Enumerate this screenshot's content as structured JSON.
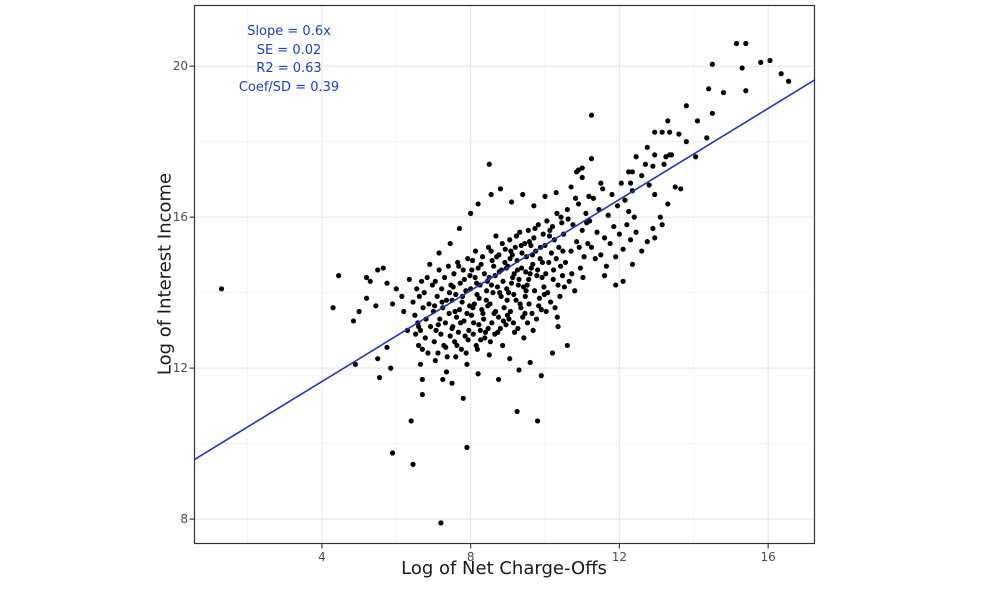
{
  "colors": {
    "annotation_text": "#1c40c8",
    "regression_line": "#2236b8",
    "point_fill": "#000000",
    "grid_major": "#e7e7e7",
    "grid_minor": "#f2f2f2",
    "panel_border": "#333333",
    "tick_mark": "#333333",
    "tick_label": "#4d4d4d",
    "axis_title": "#1a1a1a",
    "background": "#ffffff"
  },
  "chart_data": {
    "type": "scatter",
    "title": "",
    "xlabel": "Log of Net Charge-Offs",
    "ylabel": "Log of Interest Income",
    "annotation": {
      "lines": [
        "Slope = 0.6x",
        "SE = 0.02",
        "R2 = 0.63",
        "Coef/SD = 0.39"
      ]
    },
    "xlim": [
      0.56,
      17.26
    ],
    "ylim": [
      7.34,
      21.62
    ],
    "x_ticks": [
      4,
      8,
      12,
      16
    ],
    "y_ticks": [
      8,
      12,
      16,
      20
    ],
    "x_minor_gridlines": [
      2,
      6,
      10,
      14
    ],
    "y_minor_gridlines": [
      10,
      14,
      18
    ],
    "grid": "on",
    "legend": "none",
    "regression_line": {
      "x1": 0.56,
      "y1": 9.57,
      "x2": 17.26,
      "y2": 19.64,
      "slope": 0.6,
      "intercept": 9.23
    },
    "point_radius": 2.6,
    "points": [
      [
        1.3,
        14.1
      ],
      [
        7.2,
        7.9
      ],
      [
        5.9,
        9.75
      ],
      [
        6.45,
        9.45
      ],
      [
        6.4,
        10.6
      ],
      [
        7.9,
        9.9
      ],
      [
        6.7,
        11.3
      ],
      [
        7.5,
        11.6
      ],
      [
        7.8,
        11.2
      ],
      [
        9.25,
        10.85
      ],
      [
        9.8,
        10.6
      ],
      [
        7.25,
        11.7
      ],
      [
        4.45,
        14.45
      ],
      [
        5.2,
        14.4
      ],
      [
        5.5,
        14.6
      ],
      [
        5.65,
        14.65
      ],
      [
        5.3,
        14.3
      ],
      [
        5.75,
        14.25
      ],
      [
        4.3,
        13.6
      ],
      [
        5.0,
        13.5
      ],
      [
        4.85,
        13.25
      ],
      [
        5.45,
        13.65
      ],
      [
        5.9,
        13.7
      ],
      [
        5.2,
        13.85
      ],
      [
        6.2,
        13.5
      ],
      [
        6.3,
        13.0
      ],
      [
        6.6,
        13.1
      ],
      [
        5.75,
        12.55
      ],
      [
        5.5,
        12.25
      ],
      [
        4.9,
        12.1
      ],
      [
        5.55,
        11.75
      ],
      [
        5.85,
        12.0
      ],
      [
        6.65,
        12.1
      ],
      [
        6.7,
        11.7
      ],
      [
        6.0,
        14.1
      ],
      [
        6.15,
        13.9
      ],
      [
        6.35,
        14.35
      ],
      [
        6.45,
        13.75
      ],
      [
        15.15,
        20.6
      ],
      [
        15.4,
        20.6
      ],
      [
        14.5,
        20.05
      ],
      [
        15.3,
        19.95
      ],
      [
        15.8,
        20.1
      ],
      [
        16.05,
        20.15
      ],
      [
        16.35,
        19.8
      ],
      [
        16.55,
        19.6
      ],
      [
        14.4,
        19.4
      ],
      [
        14.8,
        19.3
      ],
      [
        15.4,
        19.35
      ],
      [
        13.8,
        18.95
      ],
      [
        13.3,
        18.55
      ],
      [
        14.1,
        18.55
      ],
      [
        14.5,
        18.75
      ],
      [
        12.95,
        18.25
      ],
      [
        13.15,
        18.25
      ],
      [
        13.35,
        18.25
      ],
      [
        13.8,
        18.0
      ],
      [
        14.35,
        18.1
      ],
      [
        12.75,
        17.85
      ],
      [
        12.45,
        17.6
      ],
      [
        13.25,
        17.6
      ],
      [
        13.4,
        17.65
      ],
      [
        12.7,
        17.4
      ],
      [
        12.9,
        17.35
      ],
      [
        12.35,
        17.2
      ],
      [
        12.6,
        17.1
      ],
      [
        12.8,
        16.85
      ],
      [
        12.3,
        16.9
      ],
      [
        13.5,
        16.8
      ],
      [
        13.65,
        16.75
      ],
      [
        12.95,
        16.6
      ],
      [
        14.05,
        17.6
      ],
      [
        11.25,
        18.7
      ],
      [
        11.25,
        17.55
      ],
      [
        11.0,
        17.3
      ],
      [
        10.85,
        17.2
      ],
      [
        12.25,
        17.2
      ],
      [
        12.95,
        17.65
      ],
      [
        13.2,
        17.4
      ],
      [
        13.35,
        17.65
      ],
      [
        10.9,
        17.25
      ],
      [
        11.0,
        17.05
      ],
      [
        11.5,
        16.9
      ],
      [
        8.5,
        17.4
      ],
      [
        13.6,
        18.2
      ],
      [
        7.05,
        12.2
      ],
      [
        7.35,
        11.9
      ],
      [
        7.6,
        12.3
      ],
      [
        7.9,
        12.1
      ],
      [
        8.2,
        11.85
      ],
      [
        8.5,
        12.35
      ],
      [
        8.75,
        11.7
      ],
      [
        9.05,
        12.25
      ],
      [
        9.3,
        11.95
      ],
      [
        9.6,
        12.15
      ],
      [
        9.9,
        11.8
      ],
      [
        10.2,
        12.4
      ],
      [
        10.6,
        12.6
      ],
      [
        10.35,
        13.1
      ],
      [
        12.1,
        14.3
      ],
      [
        12.35,
        14.75
      ],
      [
        12.6,
        15.1
      ],
      [
        11.9,
        14.2
      ],
      [
        11.6,
        14.45
      ],
      [
        12.75,
        15.35
      ],
      [
        12.9,
        15.7
      ],
      [
        13.1,
        16.0
      ],
      [
        13.3,
        16.35
      ],
      [
        12.95,
        15.45
      ],
      [
        13.15,
        15.8
      ],
      [
        8.2,
        16.35
      ],
      [
        8.55,
        16.6
      ],
      [
        8.8,
        16.75
      ],
      [
        9.1,
        16.4
      ],
      [
        9.4,
        16.6
      ],
      [
        9.7,
        16.3
      ],
      [
        10.0,
        16.55
      ],
      [
        8.0,
        16.1
      ],
      [
        7.7,
        15.7
      ],
      [
        7.45,
        15.3
      ],
      [
        7.15,
        15.05
      ],
      [
        6.9,
        14.75
      ],
      [
        10.3,
        16.65
      ],
      [
        10.7,
        16.8
      ],
      [
        6.5,
        13.4
      ],
      [
        6.52,
        12.9
      ],
      [
        6.55,
        14.1
      ],
      [
        6.58,
        13.2
      ],
      [
        6.6,
        12.6
      ],
      [
        6.62,
        13.9
      ],
      [
        6.65,
        13.0
      ],
      [
        6.68,
        14.3
      ],
      [
        6.7,
        12.5
      ],
      [
        6.72,
        13.6
      ],
      [
        6.75,
        14.0
      ],
      [
        6.78,
        12.8
      ],
      [
        6.8,
        13.3
      ],
      [
        6.83,
        14.4
      ],
      [
        6.85,
        12.4
      ],
      [
        6.88,
        13.7
      ],
      [
        6.92,
        13.1
      ],
      [
        6.97,
        14.2
      ],
      [
        7.0,
        13.5
      ],
      [
        7.02,
        12.7
      ],
      [
        7.05,
        14.3
      ],
      [
        7.07,
        13.0
      ],
      [
        7.1,
        13.9
      ],
      [
        7.12,
        12.4
      ],
      [
        7.15,
        14.6
      ],
      [
        7.17,
        13.3
      ],
      [
        7.2,
        12.9
      ],
      [
        7.22,
        14.1
      ],
      [
        7.25,
        13.6
      ],
      [
        7.28,
        12.6
      ],
      [
        7.3,
        14.4
      ],
      [
        7.32,
        13.2
      ],
      [
        7.35,
        13.8
      ],
      [
        7.37,
        12.3
      ],
      [
        7.4,
        14.7
      ],
      [
        7.42,
        13.45
      ],
      [
        7.45,
        12.85
      ],
      [
        7.47,
        14.2
      ],
      [
        7.5,
        13.05
      ],
      [
        7.03,
        13.65
      ],
      [
        7.13,
        13.15
      ],
      [
        7.23,
        13.75
      ],
      [
        7.33,
        12.55
      ],
      [
        7.43,
        14.0
      ],
      [
        7.5,
        13.8
      ],
      [
        7.52,
        13.1
      ],
      [
        7.55,
        14.5
      ],
      [
        7.57,
        12.7
      ],
      [
        7.6,
        13.95
      ],
      [
        7.62,
        13.35
      ],
      [
        7.65,
        14.8
      ],
      [
        7.67,
        12.95
      ],
      [
        7.7,
        13.55
      ],
      [
        7.72,
        14.25
      ],
      [
        7.75,
        12.5
      ],
      [
        7.77,
        13.75
      ],
      [
        7.8,
        14.6
      ],
      [
        7.82,
        13.25
      ],
      [
        7.85,
        12.85
      ],
      [
        7.87,
        14.05
      ],
      [
        7.9,
        13.45
      ],
      [
        7.92,
        14.9
      ],
      [
        7.95,
        13.0
      ],
      [
        7.97,
        13.65
      ],
      [
        7.53,
        14.15
      ],
      [
        7.63,
        12.6
      ],
      [
        7.73,
        13.2
      ],
      [
        7.83,
        14.35
      ],
      [
        7.93,
        12.75
      ],
      [
        7.58,
        13.5
      ],
      [
        7.68,
        14.7
      ],
      [
        7.78,
        13.9
      ],
      [
        7.88,
        12.4
      ],
      [
        7.98,
        14.45
      ],
      [
        8.0,
        14.1
      ],
      [
        8.02,
        13.4
      ],
      [
        8.05,
        14.85
      ],
      [
        8.07,
        12.9
      ],
      [
        8.1,
        13.7
      ],
      [
        8.12,
        14.4
      ],
      [
        8.15,
        12.6
      ],
      [
        8.17,
        13.95
      ],
      [
        8.2,
        14.65
      ],
      [
        8.22,
        13.15
      ],
      [
        8.25,
        14.2
      ],
      [
        8.27,
        12.75
      ],
      [
        8.3,
        13.55
      ],
      [
        8.32,
        14.95
      ],
      [
        8.35,
        13.3
      ],
      [
        8.37,
        14.5
      ],
      [
        8.4,
        12.95
      ],
      [
        8.42,
        13.8
      ],
      [
        8.45,
        14.3
      ],
      [
        8.47,
        13.05
      ],
      [
        8.03,
        14.6
      ],
      [
        8.08,
        13.2
      ],
      [
        8.13,
        15.1
      ],
      [
        8.18,
        12.5
      ],
      [
        8.23,
        13.85
      ],
      [
        8.28,
        14.75
      ],
      [
        8.33,
        13.45
      ],
      [
        8.38,
        12.8
      ],
      [
        8.43,
        14.05
      ],
      [
        8.48,
        15.2
      ],
      [
        8.06,
        13.6
      ],
      [
        8.16,
        14.25
      ],
      [
        8.26,
        13.0
      ],
      [
        8.46,
        13.65
      ],
      [
        8.5,
        14.4
      ],
      [
        8.52,
        13.7
      ],
      [
        8.55,
        15.1
      ],
      [
        8.57,
        13.2
      ],
      [
        8.6,
        14.0
      ],
      [
        8.62,
        14.7
      ],
      [
        8.65,
        12.9
      ],
      [
        8.67,
        13.5
      ],
      [
        8.7,
        14.95
      ],
      [
        8.72,
        14.15
      ],
      [
        8.75,
        13.35
      ],
      [
        8.77,
        14.55
      ],
      [
        8.8,
        13.05
      ],
      [
        8.82,
        13.9
      ],
      [
        8.85,
        15.3
      ],
      [
        8.87,
        14.3
      ],
      [
        8.9,
        13.6
      ],
      [
        8.92,
        14.8
      ],
      [
        8.95,
        13.15
      ],
      [
        8.97,
        14.1
      ],
      [
        8.53,
        12.7
      ],
      [
        8.58,
        14.85
      ],
      [
        8.63,
        13.45
      ],
      [
        8.68,
        15.5
      ],
      [
        8.73,
        12.95
      ],
      [
        8.78,
        14.0
      ],
      [
        8.83,
        14.6
      ],
      [
        8.88,
        13.25
      ],
      [
        8.93,
        15.15
      ],
      [
        8.98,
        13.8
      ],
      [
        8.56,
        14.2
      ],
      [
        8.66,
        14.45
      ],
      [
        8.76,
        15.0
      ],
      [
        8.86,
        12.6
      ],
      [
        8.96,
        14.65
      ],
      [
        8.99,
        13.4
      ],
      [
        9.0,
        14.7
      ],
      [
        9.02,
        14.0
      ],
      [
        9.05,
        15.4
      ],
      [
        9.07,
        13.5
      ],
      [
        9.1,
        14.25
      ],
      [
        9.12,
        15.0
      ],
      [
        9.15,
        13.2
      ],
      [
        9.17,
        14.5
      ],
      [
        9.2,
        15.2
      ],
      [
        9.22,
        13.8
      ],
      [
        9.25,
        14.85
      ],
      [
        9.27,
        13.05
      ],
      [
        9.3,
        14.35
      ],
      [
        9.32,
        15.6
      ],
      [
        9.35,
        13.6
      ],
      [
        9.37,
        14.65
      ],
      [
        9.4,
        13.35
      ],
      [
        9.42,
        14.15
      ],
      [
        9.45,
        15.3
      ],
      [
        9.47,
        13.9
      ],
      [
        9.03,
        13.3
      ],
      [
        9.08,
        15.1
      ],
      [
        9.13,
        14.4
      ],
      [
        9.18,
        12.95
      ],
      [
        9.23,
        15.5
      ],
      [
        9.28,
        14.2
      ],
      [
        9.33,
        13.7
      ],
      [
        9.38,
        15.05
      ],
      [
        9.43,
        12.8
      ],
      [
        9.48,
        14.55
      ],
      [
        9.06,
        14.9
      ],
      [
        9.16,
        13.95
      ],
      [
        9.26,
        14.6
      ],
      [
        9.36,
        15.25
      ],
      [
        9.46,
        13.45
      ],
      [
        9.49,
        14.05
      ],
      [
        9.5,
        14.95
      ],
      [
        9.52,
        14.2
      ],
      [
        9.55,
        15.65
      ],
      [
        9.57,
        13.7
      ],
      [
        9.6,
        14.5
      ],
      [
        9.62,
        15.25
      ],
      [
        9.65,
        13.45
      ],
      [
        9.67,
        14.75
      ],
      [
        9.7,
        15.45
      ],
      [
        9.72,
        14.05
      ],
      [
        9.75,
        15.1
      ],
      [
        9.77,
        13.3
      ],
      [
        9.8,
        14.6
      ],
      [
        9.82,
        15.8
      ],
      [
        9.85,
        13.85
      ],
      [
        9.87,
        14.9
      ],
      [
        9.9,
        13.55
      ],
      [
        9.92,
        14.4
      ],
      [
        9.95,
        15.55
      ],
      [
        9.97,
        14.15
      ],
      [
        9.53,
        13.2
      ],
      [
        9.58,
        15.35
      ],
      [
        9.63,
        14.65
      ],
      [
        9.68,
        13.0
      ],
      [
        9.73,
        15.7
      ],
      [
        9.78,
        14.45
      ],
      [
        9.83,
        13.65
      ],
      [
        9.88,
        15.2
      ],
      [
        9.93,
        14.8
      ],
      [
        9.98,
        13.95
      ],
      [
        9.56,
        14.35
      ],
      [
        9.66,
        15.0
      ],
      [
        10.0,
        15.25
      ],
      [
        10.02,
        14.5
      ],
      [
        10.05,
        15.9
      ],
      [
        10.07,
        14.0
      ],
      [
        10.1,
        14.8
      ],
      [
        10.12,
        15.5
      ],
      [
        10.15,
        13.75
      ],
      [
        10.17,
        15.05
      ],
      [
        10.2,
        15.75
      ],
      [
        10.22,
        14.35
      ],
      [
        10.25,
        15.4
      ],
      [
        10.27,
        13.6
      ],
      [
        10.3,
        14.9
      ],
      [
        10.32,
        16.1
      ],
      [
        10.35,
        14.2
      ],
      [
        10.37,
        15.2
      ],
      [
        10.4,
        13.9
      ],
      [
        10.42,
        14.7
      ],
      [
        10.45,
        15.85
      ],
      [
        10.47,
        14.45
      ],
      [
        10.03,
        13.5
      ],
      [
        10.13,
        15.65
      ],
      [
        10.23,
        14.6
      ],
      [
        10.33,
        13.35
      ],
      [
        10.43,
        16.0
      ],
      [
        10.48,
        15.1
      ],
      [
        10.5,
        15.55
      ],
      [
        10.55,
        14.8
      ],
      [
        10.6,
        16.2
      ],
      [
        10.65,
        14.3
      ],
      [
        10.7,
        15.1
      ],
      [
        10.75,
        15.8
      ],
      [
        10.8,
        14.05
      ],
      [
        10.85,
        15.35
      ],
      [
        10.9,
        16.35
      ],
      [
        10.95,
        14.65
      ],
      [
        11.0,
        15.65
      ],
      [
        11.05,
        14.95
      ],
      [
        11.1,
        16.1
      ],
      [
        11.15,
        15.3
      ],
      [
        10.52,
        14.15
      ],
      [
        10.62,
        15.95
      ],
      [
        10.72,
        14.5
      ],
      [
        10.82,
        16.5
      ],
      [
        10.92,
        15.2
      ],
      [
        11.02,
        14.4
      ],
      [
        11.12,
        15.85
      ],
      [
        11.18,
        16.55
      ],
      [
        11.2,
        15.9
      ],
      [
        11.25,
        15.2
      ],
      [
        11.3,
        16.5
      ],
      [
        11.35,
        14.9
      ],
      [
        11.4,
        15.6
      ],
      [
        11.45,
        16.2
      ],
      [
        11.5,
        15.0
      ],
      [
        11.55,
        16.75
      ],
      [
        11.6,
        15.45
      ],
      [
        11.65,
        14.7
      ],
      [
        11.7,
        16.05
      ],
      [
        11.75,
        15.3
      ],
      [
        11.8,
        16.6
      ],
      [
        11.85,
        15.75
      ],
      [
        11.9,
        14.95
      ],
      [
        11.95,
        16.3
      ],
      [
        12.0,
        15.55
      ],
      [
        12.05,
        16.9
      ],
      [
        12.1,
        15.15
      ],
      [
        12.15,
        16.45
      ],
      [
        12.2,
        15.8
      ],
      [
        12.25,
        16.15
      ],
      [
        12.3,
        15.4
      ],
      [
        12.35,
        16.7
      ],
      [
        12.4,
        16.0
      ],
      [
        12.45,
        15.6
      ]
    ]
  },
  "axes": {
    "x_title": "Log of Net Charge-Offs",
    "y_title": "Log of Interest Income"
  },
  "annotation": {
    "line1": "Slope = 0.6x",
    "line2": "SE = 0.02",
    "line3": "R2 = 0.63",
    "line4": "Coef/SD = 0.39"
  }
}
